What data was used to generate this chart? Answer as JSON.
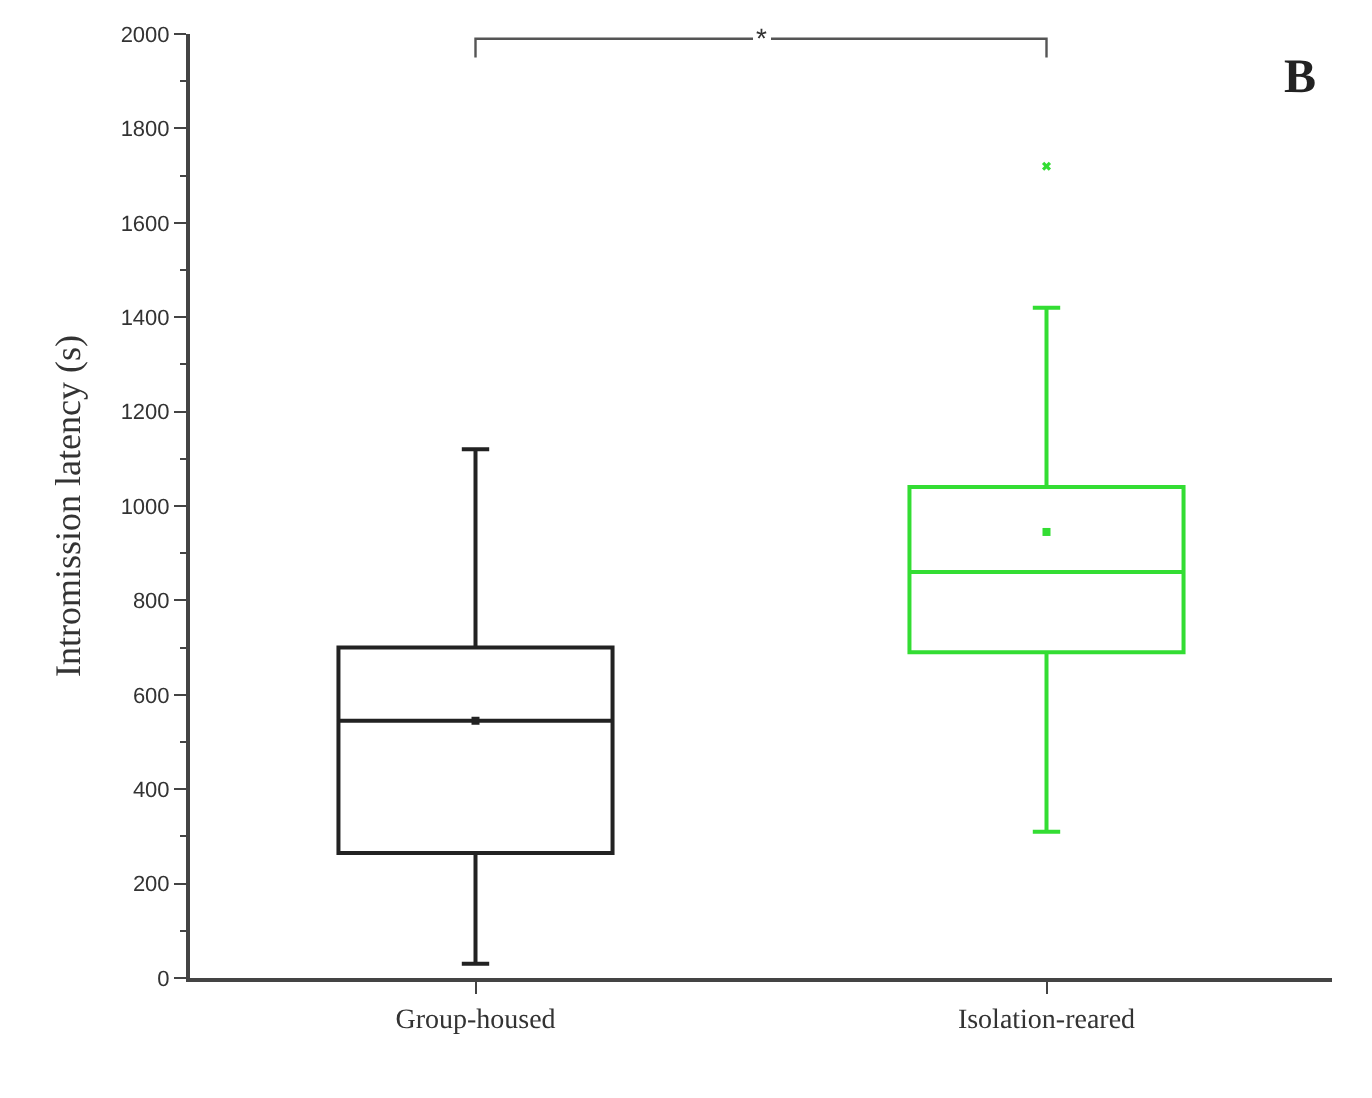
{
  "chart_data": {
    "type": "box",
    "ylabel": "Intromission latency (s)",
    "categories": [
      "Group-housed",
      "Isolation-reared"
    ],
    "series": [
      {
        "color": "#222222",
        "boxes": [
          {
            "low": 30,
            "q1": 265,
            "median": 545,
            "q3": 700,
            "high": 1120,
            "mean": 545
          },
          null
        ]
      },
      {
        "color": "#33dd33",
        "boxes": [
          null,
          {
            "low": 310,
            "q1": 690,
            "median": 860,
            "q3": 1040,
            "high": 1420,
            "mean": 945,
            "outliers": [
              1720
            ]
          }
        ]
      }
    ],
    "ylim": [
      0,
      2000
    ],
    "yticks": [
      0,
      200,
      400,
      600,
      800,
      1000,
      1200,
      1400,
      1600,
      1800,
      2000
    ],
    "annotations": [
      "*",
      "B"
    ]
  }
}
